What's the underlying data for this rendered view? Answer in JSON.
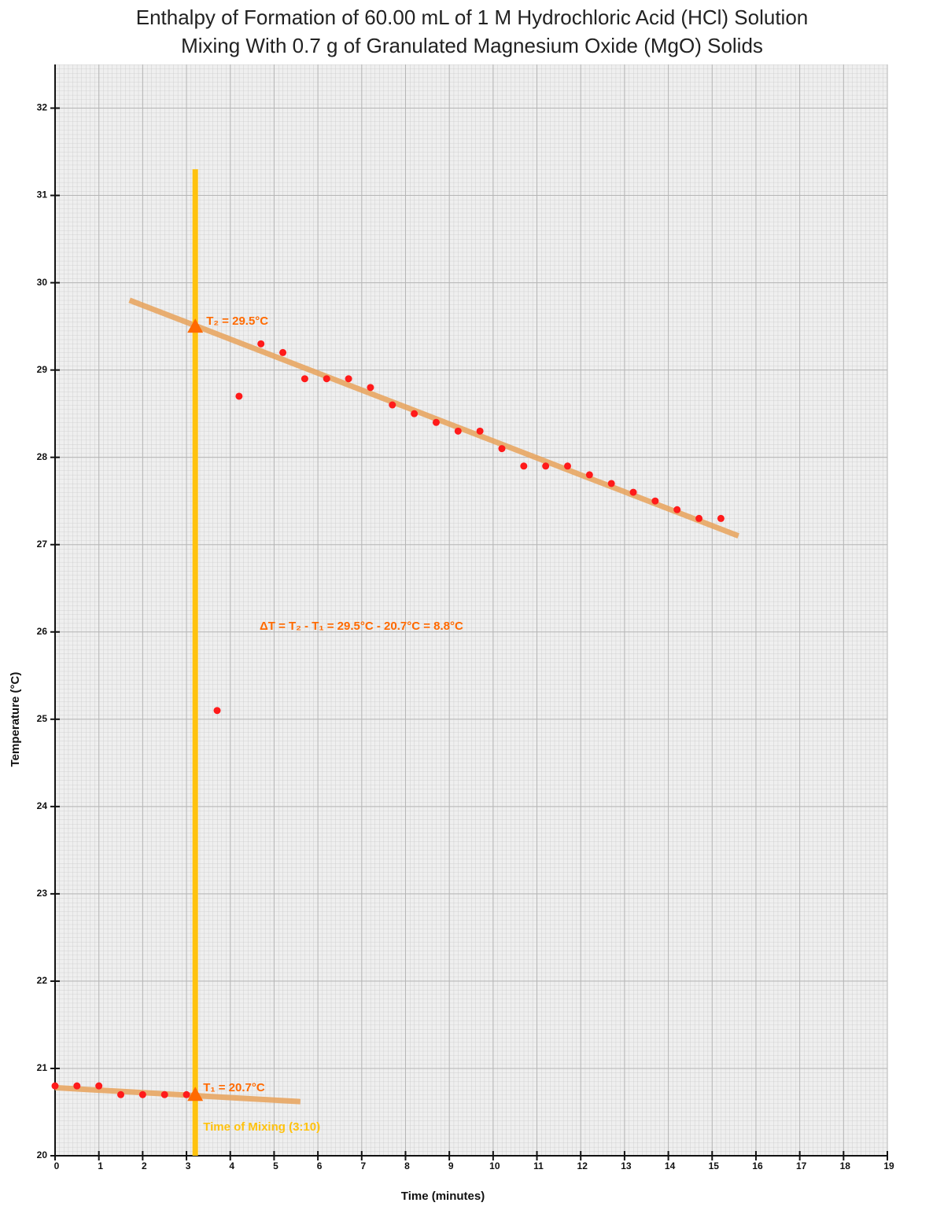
{
  "chart_data": {
    "type": "scatter",
    "title": [
      "Enthalpy of Formation of 60.00 mL of 1 M Hydrochloric Acid (HCl) Solution",
      "Mixing With 0.7 g of Granulated Magnesium Oxide (MgO) Solids"
    ],
    "x_label": "Time (minutes)",
    "y_label": "Temperature (°C)",
    "xlim": [
      0,
      19
    ],
    "ylim": [
      20,
      32.5
    ],
    "xticks": [
      0,
      1,
      2,
      3,
      4,
      5,
      6,
      7,
      8,
      9,
      10,
      11,
      12,
      13,
      14,
      15,
      16,
      17,
      18,
      19
    ],
    "yticks": [
      20,
      21,
      22,
      23,
      24,
      25,
      26,
      27,
      28,
      29,
      30,
      31,
      32
    ],
    "grid": true,
    "points": {
      "color": "#ff1a1a",
      "x": [
        0,
        0.5,
        1,
        1.5,
        2,
        2.5,
        3,
        3.7,
        4.2,
        4.7,
        5.2,
        5.7,
        6.2,
        6.7,
        7.2,
        7.7,
        8.2,
        8.7,
        9.2,
        9.7,
        10.2,
        10.7,
        11.2,
        11.7,
        12.2,
        12.7,
        13.2,
        13.7,
        14.2,
        14.7,
        15.2
      ],
      "values": [
        20.8,
        20.8,
        20.8,
        20.7,
        20.7,
        20.7,
        20.7,
        25.1,
        28.7,
        29.3,
        29.2,
        28.9,
        28.9,
        28.9,
        28.8,
        28.6,
        28.5,
        28.4,
        28.3,
        28.3,
        28.1,
        27.9,
        27.9,
        27.9,
        27.8,
        27.7,
        27.6,
        27.5,
        27.4,
        27.3,
        27.3
      ]
    },
    "fit_lines": [
      {
        "color": "#e8a25a",
        "x": [
          1.7,
          15.6
        ],
        "values": [
          29.8,
          27.1
        ]
      },
      {
        "color": "#e8a25a",
        "x": [
          0,
          5.6
        ],
        "values": [
          20.78,
          20.62
        ]
      }
    ],
    "mixing_line": {
      "color": "#ffc20e",
      "x": [
        3.2,
        3.2
      ],
      "values": [
        20,
        31.3
      ]
    },
    "markers": {
      "color": "#ff6a00",
      "x": [
        3.2,
        3.2
      ],
      "values": [
        29.5,
        20.7
      ]
    },
    "annotations": {
      "t2": "T₂ = 29.5°C",
      "t1": "T₁ = 20.7°C",
      "delta": "ΔT = T₂ - T₁ = 29.5°C - 20.7°C = 8.8°C",
      "mixing": "Time of Mixing (3:10)"
    }
  }
}
